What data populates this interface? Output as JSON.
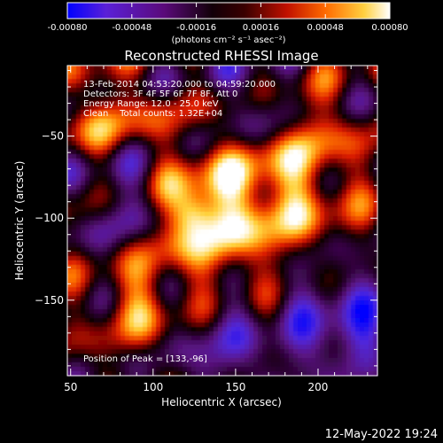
{
  "chart_data": {
    "type": "heatmap",
    "title": "Reconstructed RHESSI Image",
    "xlabel": "Heliocentric X (arcsec)",
    "ylabel": "Heliocentric Y (arcsec)",
    "xlim": [
      48,
      236
    ],
    "ylim": [
      -196,
      -7
    ],
    "x_ticks": [
      50,
      100,
      150,
      200
    ],
    "y_ticks": [
      -50,
      -100,
      -150
    ],
    "colorbar": {
      "min": -0.0008,
      "max": 0.0008,
      "ticks": [
        "-0.00080",
        "-0.00048",
        "-0.00016",
        "0.00016",
        "0.00048",
        "0.00080"
      ],
      "unit_label": "(photons cm⁻² s⁻¹ asec⁻²)",
      "colors": [
        "#0000ff",
        "#6a20c8",
        "#2a0030",
        "#000000",
        "#7a0000",
        "#e02000",
        "#ff7a00",
        "#ffd040",
        "#ffffff"
      ]
    },
    "annotations": [
      "13-Feb-2014 04:53:20.000 to 04:59:20.000",
      "Detectors: 3F 4F 5F 6F 7F 8F, Att 0",
      "Energy Range: 12.0 - 25.0 keV",
      "Clean    Total counts: 1.32E+04"
    ],
    "peak_label": "Position of Peak = [133,-96]",
    "grid": false
  },
  "footer": {
    "date": "12-May-2022 19:24"
  }
}
